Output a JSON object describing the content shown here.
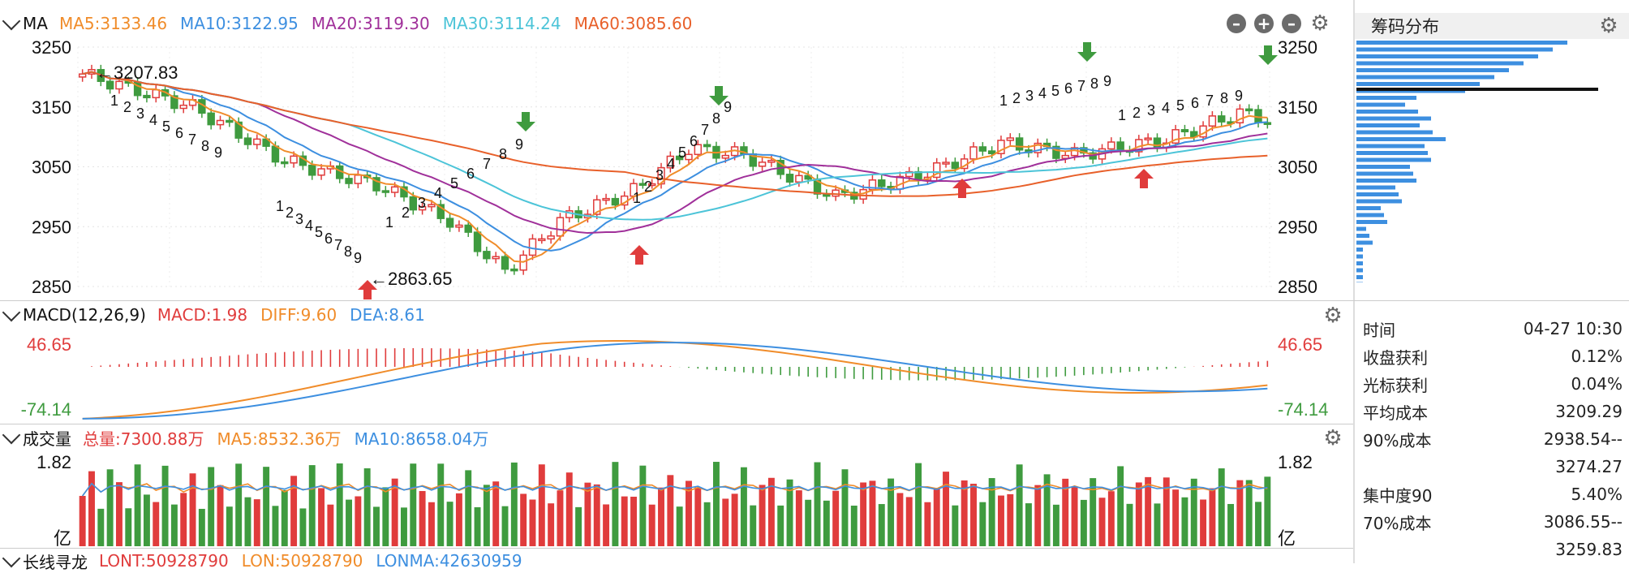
{
  "ma_header": {
    "title": "MA",
    "ma5": "MA5:3133.46",
    "ma10": "MA10:3122.95",
    "ma20": "MA20:3119.30",
    "ma30": "MA30:3114.24",
    "ma60": "MA60:3085.60"
  },
  "price_axis": [
    "3250",
    "3150",
    "3050",
    "2950",
    "2850"
  ],
  "price_labels": {
    "high": "←3207.83",
    "low": "←2863.65"
  },
  "td_counts": [
    "1",
    "2",
    "3",
    "4",
    "5",
    "6",
    "7",
    "8",
    "9"
  ],
  "macd_header": {
    "title": "MACD(12,26,9)",
    "macd": "MACD:1.98",
    "diff": "DIFF:9.60",
    "dea": "DEA:8.61"
  },
  "macd_axis": {
    "top": "46.65",
    "bottom": "-74.14"
  },
  "vol_header": {
    "title": "成交量",
    "total": "总量:7300.88万",
    "ma5": "MA5:8532.36万",
    "ma10": "MA10:8658.04万"
  },
  "vol_axis": {
    "top": "1.82",
    "unit": "亿"
  },
  "long_header": {
    "title": "长线寻龙",
    "lont": "LONT:50928790",
    "lon": "LON:50928790",
    "lonma": "LONMA:42630959"
  },
  "chip": {
    "title": "筹码分布",
    "rows": [
      {
        "label": "时间",
        "value": "04-27 10:30"
      },
      {
        "label": "收盘获利",
        "value": "0.12%"
      },
      {
        "label": "光标获利",
        "value": "0.04%"
      },
      {
        "label": "平均成本",
        "value": "3209.29"
      },
      {
        "label": "90%成本",
        "value": "2938.54--"
      },
      {
        "label": "",
        "value": "3274.27"
      },
      {
        "label": "集中度90",
        "value": "5.40%"
      },
      {
        "label": "70%成本",
        "value": "3086.55--"
      },
      {
        "label": "",
        "value": "3259.83"
      }
    ]
  },
  "colors": {
    "up": "#e03c3c",
    "down": "#3f9b3f",
    "ma5": "#f08c2a",
    "ma10": "#3d8fe0",
    "ma20": "#a0309a",
    "ma30": "#4cc4d8",
    "ma60": "#e8602a",
    "chip": "#3d8fe0"
  }
}
